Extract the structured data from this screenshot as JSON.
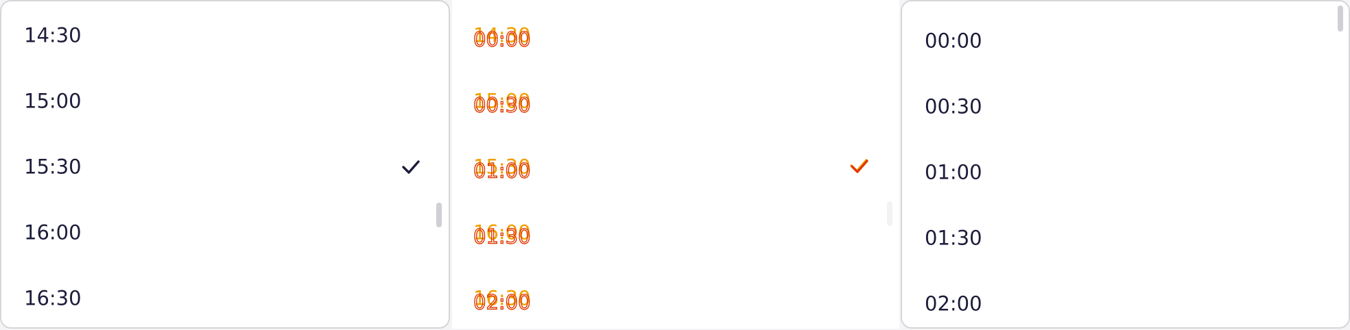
{
  "left": {
    "items": [
      "14:30",
      "15:00",
      "15:30",
      "16:00",
      "16:30"
    ],
    "selected": 2
  },
  "right": {
    "items": [
      "00:00",
      "00:30",
      "01:00",
      "01:30",
      "02:00"
    ]
  }
}
